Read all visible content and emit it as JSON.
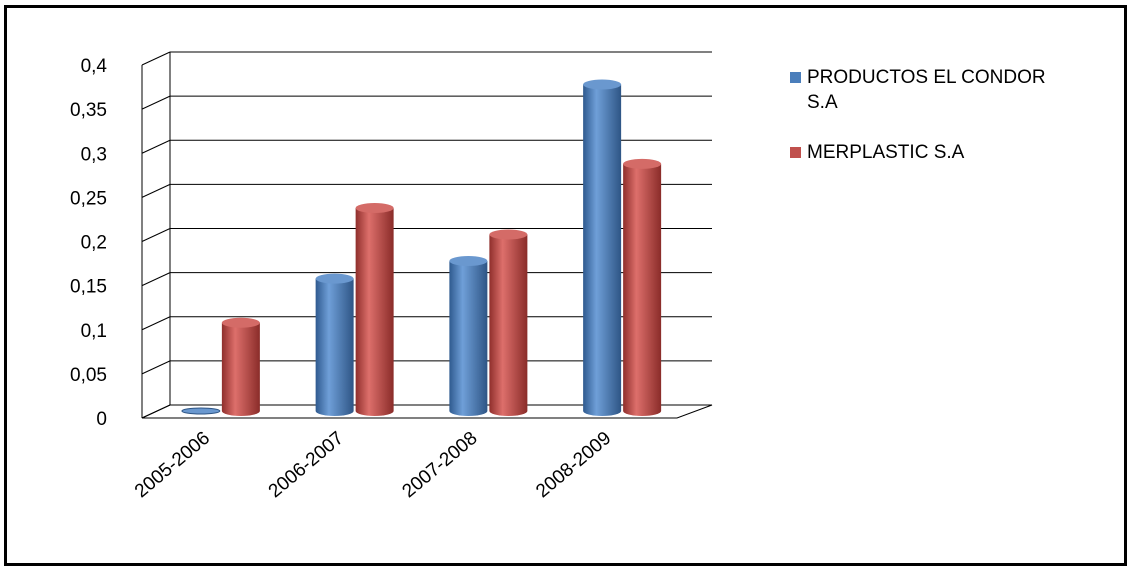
{
  "chart_data": {
    "type": "bar",
    "style": "3d-cylinder",
    "categories": [
      "2005-2006",
      "2006-2007",
      "2007-2008",
      "2008-2009"
    ],
    "series": [
      {
        "name": "PRODUCTOS EL CONDOR S.A",
        "values": [
          0,
          0.15,
          0.17,
          0.37
        ],
        "color": "#4a7ebb"
      },
      {
        "name": "MERPLASTIC S.A",
        "values": [
          0.1,
          0.23,
          0.2,
          0.28
        ],
        "color": "#c0504d"
      }
    ],
    "yticks": [
      "0",
      "0,05",
      "0,1",
      "0,15",
      "0,2",
      "0,25",
      "0,3",
      "0,35",
      "0,4"
    ],
    "ylim": [
      0,
      0.4
    ],
    "grid": true,
    "legend_position": "right",
    "legend_lines": [
      [
        "PRODUCTOS EL CONDOR",
        "S.A"
      ],
      [
        "MERPLASTIC S.A"
      ]
    ]
  }
}
